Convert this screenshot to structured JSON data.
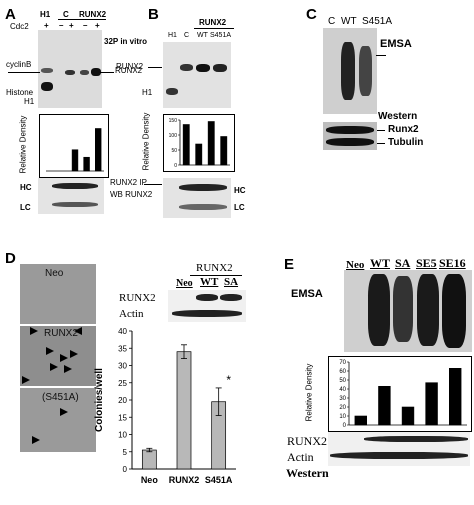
{
  "panel_A": {
    "letter": "A",
    "cdc2_label": "Cdc2",
    "cdc2_states": [
      "+",
      "–",
      "+",
      "–",
      "+"
    ],
    "lane_groups": [
      "H1",
      "C",
      "RUNX2"
    ],
    "title": "32P in vitro",
    "left_labels": [
      "cyclinB",
      "Histone",
      "H1"
    ],
    "right_labels": [
      "RUNX2"
    ],
    "ylabel": "Relative Density",
    "ip_labels": [
      "RUNX2 IP",
      "WB RUNX2"
    ],
    "chain_labels": [
      "HC",
      "LC"
    ]
  },
  "panel_B": {
    "letter": "B",
    "header": "RUNX2",
    "lanes": [
      "H1",
      "C",
      "WT",
      "S451A"
    ],
    "left_labels": [
      "RUNX2",
      "H1"
    ],
    "ylabel": "Relative Density",
    "chain_labels": [
      "HC",
      "LC"
    ]
  },
  "panel_C": {
    "letter": "C",
    "lanes": [
      "C",
      "WT",
      "S451A"
    ],
    "emsa_label": "EMSA",
    "western_label": "Western",
    "runx2_label": "Runx2",
    "tubulin_label": "Tubulin"
  },
  "panel_D": {
    "letter": "D",
    "well_labels": [
      "Neo",
      "RUNX2",
      "(S451A)"
    ],
    "western_header": "RUNX2",
    "western_lanes": [
      "Neo",
      "WT",
      "SA"
    ],
    "western_rows": [
      "RUNX2",
      "Actin"
    ]
  },
  "panel_E": {
    "letter": "E",
    "lanes": [
      "Neo",
      "WT",
      "SA",
      "SE5",
      "SE16"
    ],
    "emsa_label": "EMSA",
    "ylabel": "Relative Density",
    "rows": [
      "RUNX2",
      "Actin"
    ],
    "western_label": "Western"
  },
  "chart_data": [
    {
      "type": "bar",
      "panel": "A",
      "categories": [
        "H1",
        "C -",
        "C +",
        "RUNX2 -",
        "RUNX2 +"
      ],
      "values": [
        0,
        0,
        17,
        11,
        34
      ],
      "ylim": [
        0,
        40
      ],
      "yticks": [],
      "ylabel": "Relative Density"
    },
    {
      "type": "bar",
      "panel": "B",
      "categories": [
        "H1",
        "C",
        "WT",
        "S451A"
      ],
      "values": [
        135,
        70,
        145,
        95
      ],
      "ylim": [
        0,
        150
      ],
      "yticks": [
        0,
        50,
        100,
        150
      ],
      "ylabel": "Relative Density"
    },
    {
      "type": "bar",
      "panel": "D",
      "categories": [
        "Neo",
        "RUNX2",
        "S451A"
      ],
      "values": [
        5.5,
        34,
        19.5
      ],
      "errors": [
        0.5,
        2,
        4
      ],
      "ylim": [
        0,
        40
      ],
      "yticks": [
        0,
        5,
        10,
        15,
        20,
        25,
        30,
        35,
        40
      ],
      "ylabel": "Colonies/well",
      "annotations": [
        {
          "category": "S451A",
          "text": "*"
        }
      ]
    },
    {
      "type": "bar",
      "panel": "E",
      "categories": [
        "Neo",
        "WT",
        "SA",
        "SE5",
        "SE16"
      ],
      "values": [
        10,
        43,
        20,
        47,
        63
      ],
      "ylim": [
        0,
        70
      ],
      "yticks": [
        0,
        10,
        20,
        30,
        40,
        50,
        60,
        70
      ],
      "ylabel": "Relative Density"
    }
  ]
}
